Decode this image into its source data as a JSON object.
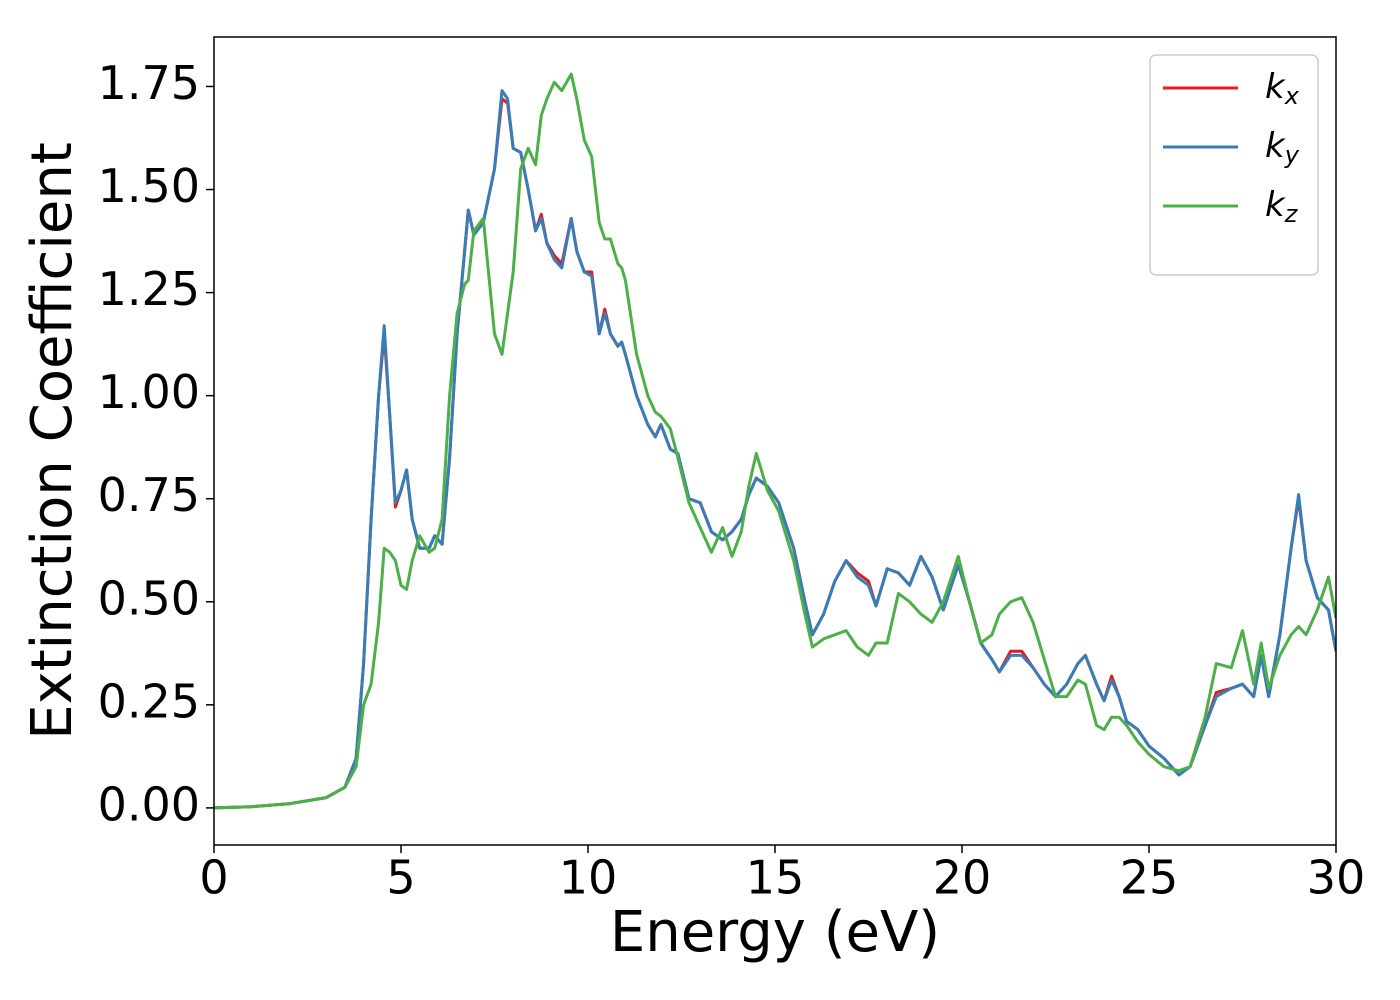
{
  "chart_data": {
    "type": "line",
    "xlabel": "Energy (eV)",
    "ylabel": "Extinction Coefficient",
    "xlim": [
      0,
      30
    ],
    "ylim": [
      -0.09,
      1.87
    ],
    "xticks": [
      0,
      5,
      10,
      15,
      20,
      25,
      30
    ],
    "yticks": [
      {
        "value": 0,
        "label": "0.00"
      },
      0.25,
      {
        "value": 0.5,
        "label": "0.50"
      },
      0.75,
      {
        "value": 1,
        "label": "1.00"
      },
      1.25,
      {
        "value": 1.5,
        "label": "1.50"
      },
      1.75
    ],
    "legend": "upper right",
    "x": [
      0,
      1,
      2,
      3,
      3.5,
      3.8,
      4.0,
      4.2,
      4.4,
      4.55,
      4.7,
      4.85,
      5.0,
      5.15,
      5.3,
      5.5,
      5.75,
      5.9,
      6.1,
      6.3,
      6.5,
      6.7,
      6.8,
      6.95,
      7.2,
      7.5,
      7.7,
      7.85,
      8.0,
      8.2,
      8.4,
      8.6,
      8.75,
      8.9,
      9.1,
      9.3,
      9.55,
      9.7,
      9.9,
      10.1,
      10.3,
      10.45,
      10.6,
      10.8,
      10.9,
      11.0,
      11.3,
      11.6,
      11.8,
      11.95,
      12.2,
      12.4,
      12.7,
      13.0,
      13.3,
      13.6,
      13.85,
      14.1,
      14.3,
      14.5,
      14.8,
      15.1,
      15.5,
      15.8,
      16.0,
      16.3,
      16.6,
      16.9,
      17.2,
      17.5,
      17.7,
      18.0,
      18.3,
      18.6,
      18.9,
      19.2,
      19.5,
      19.9,
      20.2,
      20.5,
      20.8,
      21.0,
      21.3,
      21.6,
      21.9,
      22.2,
      22.5,
      22.8,
      23.1,
      23.3,
      23.6,
      23.8,
      24.0,
      24.2,
      24.4,
      24.7,
      25.0,
      25.4,
      25.8,
      26.1,
      26.5,
      26.8,
      27.2,
      27.5,
      27.8,
      28.0,
      28.2,
      28.5,
      28.8,
      29.0,
      29.2,
      29.5,
      29.8,
      30.0
    ],
    "series": [
      {
        "name": "kx",
        "color": "#e41a1c",
        "values": [
          0,
          0.003,
          0.01,
          0.025,
          0.05,
          0.12,
          0.35,
          0.7,
          1.0,
          1.15,
          0.95,
          0.73,
          0.77,
          0.82,
          0.7,
          0.63,
          0.63,
          0.66,
          0.64,
          0.85,
          1.15,
          1.35,
          1.45,
          1.39,
          1.42,
          1.55,
          1.72,
          1.71,
          1.6,
          1.59,
          1.5,
          1.4,
          1.44,
          1.37,
          1.34,
          1.32,
          1.43,
          1.35,
          1.3,
          1.3,
          1.15,
          1.21,
          1.15,
          1.12,
          1.13,
          1.1,
          1.0,
          0.93,
          0.9,
          0.93,
          0.87,
          0.86,
          0.75,
          0.74,
          0.67,
          0.65,
          0.67,
          0.7,
          0.76,
          0.8,
          0.78,
          0.74,
          0.63,
          0.5,
          0.42,
          0.47,
          0.55,
          0.6,
          0.57,
          0.55,
          0.49,
          0.58,
          0.57,
          0.54,
          0.61,
          0.56,
          0.48,
          0.59,
          0.5,
          0.4,
          0.36,
          0.33,
          0.38,
          0.38,
          0.34,
          0.3,
          0.27,
          0.3,
          0.35,
          0.37,
          0.3,
          0.26,
          0.32,
          0.27,
          0.21,
          0.19,
          0.15,
          0.12,
          0.08,
          0.1,
          0.2,
          0.28,
          0.29,
          0.3,
          0.27,
          0.37,
          0.27,
          0.42,
          0.63,
          0.75,
          0.6,
          0.51,
          0.48,
          0.38
        ]
      },
      {
        "name": "ky",
        "color": "#377eb8",
        "values": [
          0,
          0.003,
          0.01,
          0.025,
          0.05,
          0.12,
          0.35,
          0.7,
          1.0,
          1.17,
          0.95,
          0.74,
          0.77,
          0.82,
          0.7,
          0.63,
          0.63,
          0.66,
          0.64,
          0.85,
          1.15,
          1.35,
          1.45,
          1.39,
          1.42,
          1.55,
          1.74,
          1.72,
          1.6,
          1.59,
          1.5,
          1.4,
          1.43,
          1.37,
          1.33,
          1.31,
          1.43,
          1.35,
          1.3,
          1.29,
          1.15,
          1.2,
          1.15,
          1.12,
          1.13,
          1.1,
          1.0,
          0.93,
          0.9,
          0.93,
          0.87,
          0.86,
          0.75,
          0.74,
          0.67,
          0.65,
          0.67,
          0.7,
          0.76,
          0.8,
          0.78,
          0.74,
          0.63,
          0.5,
          0.42,
          0.47,
          0.55,
          0.6,
          0.56,
          0.54,
          0.49,
          0.58,
          0.57,
          0.54,
          0.61,
          0.56,
          0.48,
          0.59,
          0.5,
          0.4,
          0.36,
          0.33,
          0.37,
          0.37,
          0.34,
          0.3,
          0.27,
          0.3,
          0.35,
          0.37,
          0.3,
          0.26,
          0.31,
          0.27,
          0.21,
          0.19,
          0.15,
          0.12,
          0.08,
          0.1,
          0.2,
          0.27,
          0.29,
          0.3,
          0.27,
          0.37,
          0.27,
          0.42,
          0.63,
          0.76,
          0.6,
          0.51,
          0.48,
          0.38
        ]
      },
      {
        "name": "kz",
        "color": "#4daf4a",
        "values": [
          0,
          0.003,
          0.01,
          0.025,
          0.05,
          0.1,
          0.25,
          0.3,
          0.45,
          0.63,
          0.62,
          0.6,
          0.54,
          0.53,
          0.6,
          0.66,
          0.62,
          0.63,
          0.7,
          1.0,
          1.2,
          1.27,
          1.28,
          1.4,
          1.43,
          1.15,
          1.1,
          1.2,
          1.3,
          1.55,
          1.6,
          1.56,
          1.68,
          1.72,
          1.76,
          1.74,
          1.78,
          1.72,
          1.62,
          1.58,
          1.42,
          1.38,
          1.38,
          1.32,
          1.31,
          1.28,
          1.1,
          1.0,
          0.96,
          0.95,
          0.92,
          0.85,
          0.74,
          0.68,
          0.62,
          0.68,
          0.61,
          0.67,
          0.78,
          0.86,
          0.77,
          0.72,
          0.6,
          0.47,
          0.39,
          0.41,
          0.42,
          0.43,
          0.39,
          0.37,
          0.4,
          0.4,
          0.52,
          0.5,
          0.47,
          0.45,
          0.5,
          0.61,
          0.5,
          0.4,
          0.42,
          0.47,
          0.5,
          0.51,
          0.45,
          0.36,
          0.27,
          0.27,
          0.31,
          0.3,
          0.2,
          0.19,
          0.22,
          0.22,
          0.2,
          0.16,
          0.13,
          0.1,
          0.09,
          0.1,
          0.22,
          0.35,
          0.34,
          0.43,
          0.3,
          0.4,
          0.29,
          0.37,
          0.42,
          0.44,
          0.42,
          0.48,
          0.56,
          0.46
        ]
      }
    ]
  }
}
